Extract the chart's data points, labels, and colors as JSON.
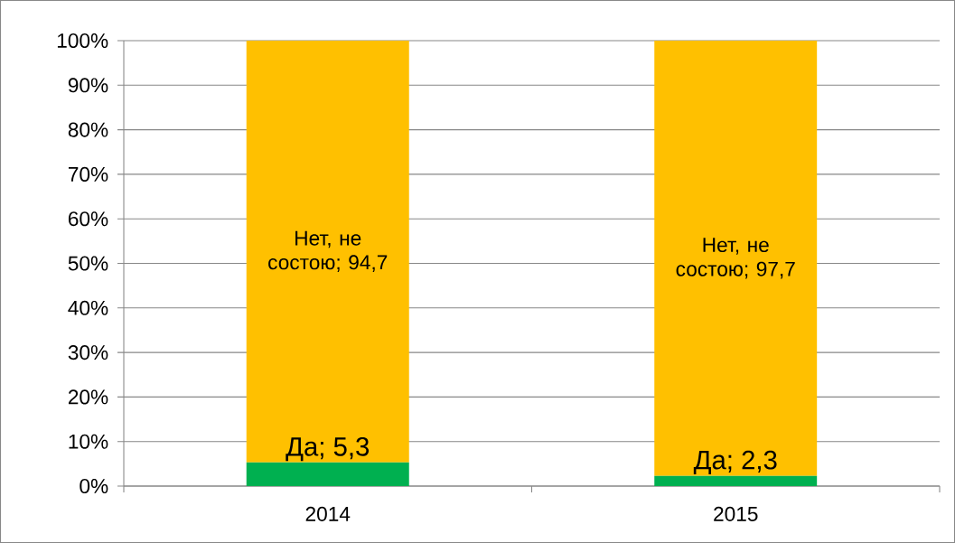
{
  "chart_data": {
    "type": "bar",
    "stacked": true,
    "categories": [
      "2014",
      "2015"
    ],
    "series": [
      {
        "color": "#00b050",
        "values": [
          5.3,
          2.3
        ],
        "value_labels": [
          "Да; 5,3",
          "Да; 2,3"
        ]
      },
      {
        "color": "#ffc000",
        "values": [
          94.7,
          97.7
        ],
        "value_labels": [
          "Нет, не состою; 94,7",
          "Нет, не состою; 97,7"
        ]
      }
    ],
    "ylim": [
      0,
      100
    ],
    "yticks": [
      {
        "value": 0,
        "label": "0%"
      },
      {
        "value": 10,
        "label": "10%"
      },
      {
        "value": 20,
        "label": "20%"
      },
      {
        "value": 30,
        "label": "30%"
      },
      {
        "value": 40,
        "label": "40%"
      },
      {
        "value": 50,
        "label": "50%"
      },
      {
        "value": 60,
        "label": "60%"
      },
      {
        "value": 70,
        "label": "70%"
      },
      {
        "value": 80,
        "label": "80%"
      },
      {
        "value": 90,
        "label": "90%"
      },
      {
        "value": 100,
        "label": "100%"
      }
    ],
    "grid": "y"
  }
}
